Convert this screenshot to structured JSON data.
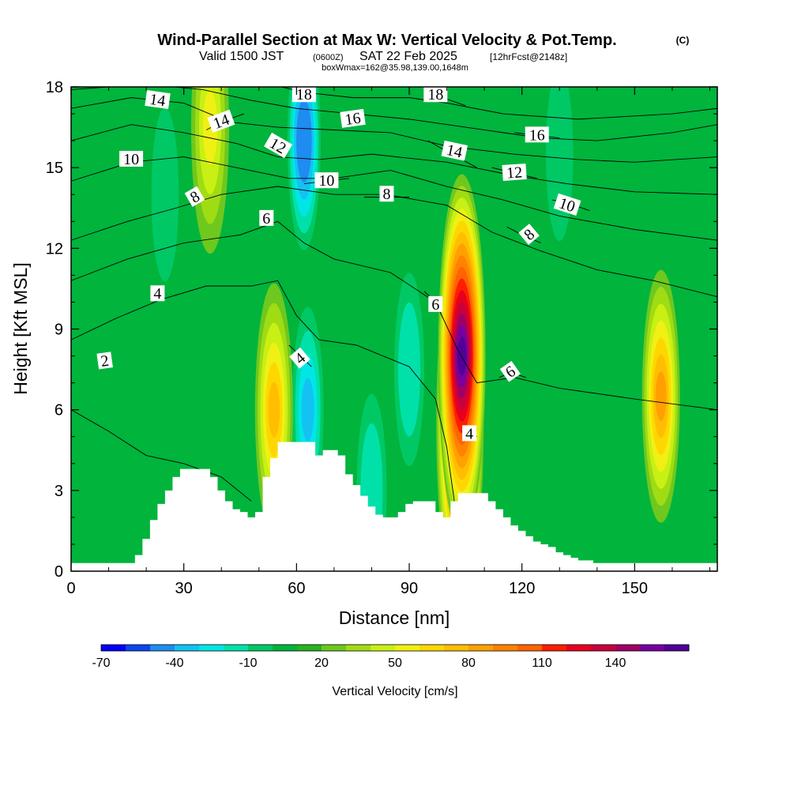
{
  "chart_data": {
    "type": "heatmap",
    "title": "Wind-Parallel Section at Max W: Vertical Velocity & Pot.Temp.",
    "title_mark": "(C)",
    "subtitle_valid": "Valid 1500 JST",
    "subtitle_utc": "(0600Z)",
    "subtitle_date": "SAT 22 Feb 2025",
    "subtitle_fcst": "[12hrFcst@2148z]",
    "subtitle_box": "boxWmax=162@35.98,139.00,1648m",
    "xlabel": "Distance [nm]",
    "ylabel": "Height [Kft MSL]",
    "xlim": [
      0,
      172
    ],
    "ylim": [
      0,
      18
    ],
    "x_ticks": [
      "0",
      "30",
      "60",
      "90",
      "120",
      "150"
    ],
    "y_ticks": [
      "0",
      "3",
      "6",
      "9",
      "12",
      "15",
      "18"
    ],
    "colorbar_label": "Vertical Velocity [cm/s]",
    "colorbar_ticks": [
      "-70",
      "-40",
      "-10",
      "20",
      "50",
      "80",
      "110",
      "140"
    ],
    "colorbar_levels": [
      -70,
      -60,
      -50,
      -40,
      -30,
      -20,
      -10,
      0,
      10,
      20,
      30,
      40,
      50,
      60,
      70,
      80,
      90,
      100,
      110,
      120,
      130,
      140,
      150
    ],
    "colorbar_colors": [
      "#0000ff",
      "#0a46ee",
      "#1e8cf0",
      "#13c2f2",
      "#00e6e6",
      "#00e1aa",
      "#00c864",
      "#00b43c",
      "#28b41e",
      "#6ec81e",
      "#a0dc14",
      "#c8f014",
      "#f0f014",
      "#ffd700",
      "#ffbe00",
      "#ffa000",
      "#ff8200",
      "#ff6400",
      "#ff1e00",
      "#e6001e",
      "#c8003c",
      "#a00064",
      "#7800a0",
      "#500096"
    ],
    "velocity_extremes": [
      {
        "x": 104,
        "z": 8.0,
        "value": 150
      },
      {
        "x": 103.5,
        "z": 5.5,
        "value": 130
      },
      {
        "x": 157,
        "z": 6.5,
        "value": 75
      },
      {
        "x": 54,
        "z": 6.0,
        "value": 60
      },
      {
        "x": 37,
        "z": 16.5,
        "value": 45
      },
      {
        "x": 62,
        "z": 16.0,
        "value": -60
      },
      {
        "x": 63,
        "z": 6.0,
        "value": -45
      },
      {
        "x": 90,
        "z": 7.5,
        "value": -30
      },
      {
        "x": 130,
        "z": 15.5,
        "value": -20
      },
      {
        "x": 25,
        "z": 14.0,
        "value": -20
      },
      {
        "x": 80,
        "z": 3.0,
        "value": -30
      }
    ],
    "terrain": {
      "x": [
        0,
        16,
        17,
        19,
        21,
        23,
        25,
        27,
        29,
        31,
        33,
        35,
        37,
        39,
        41,
        43,
        45,
        47,
        49,
        51,
        53,
        55,
        57,
        59,
        61,
        63,
        65,
        67,
        69,
        71,
        73,
        75,
        77,
        79,
        81,
        83,
        85,
        87,
        89,
        91,
        93,
        95,
        97,
        99,
        101,
        103,
        105,
        107,
        109,
        111,
        113,
        115,
        117,
        119,
        121,
        123,
        125,
        127,
        129,
        131,
        133,
        135,
        137,
        139,
        172
      ],
      "z": [
        0.3,
        0.3,
        0.6,
        1.2,
        1.9,
        2.5,
        3.0,
        3.5,
        3.8,
        3.8,
        3.8,
        3.8,
        3.5,
        3.0,
        2.6,
        2.3,
        2.2,
        2.0,
        2.2,
        3.5,
        4.2,
        4.8,
        4.8,
        4.8,
        4.8,
        4.8,
        4.3,
        4.5,
        4.5,
        4.3,
        3.6,
        3.2,
        2.8,
        2.4,
        2.1,
        2.0,
        2.0,
        2.2,
        2.5,
        2.6,
        2.6,
        2.6,
        2.2,
        2.0,
        2.6,
        2.9,
        2.9,
        2.9,
        2.9,
        2.6,
        2.3,
        2.0,
        1.7,
        1.5,
        1.3,
        1.1,
        1.0,
        0.9,
        0.7,
        0.6,
        0.5,
        0.4,
        0.4,
        0.3,
        0.3
      ]
    },
    "theta_contours": [
      {
        "label": "2",
        "points": [
          [
            0,
            6.0
          ],
          [
            10,
            5.2
          ],
          [
            20,
            4.3
          ],
          [
            30,
            4.0
          ],
          [
            40,
            3.5
          ],
          [
            48,
            2.6
          ]
        ],
        "label_at": [
          9,
          7.8
        ],
        "label_rot": -8
      },
      {
        "label": "4",
        "points": [
          [
            0,
            8.6
          ],
          [
            12,
            9.4
          ],
          [
            24,
            10.1
          ],
          [
            36,
            10.6
          ],
          [
            48,
            10.6
          ],
          [
            55,
            10.8
          ],
          [
            60,
            9.5
          ],
          [
            66,
            8.6
          ],
          [
            76,
            8.4
          ],
          [
            90,
            7.6
          ],
          [
            97,
            6.4
          ],
          [
            100,
            4.6
          ],
          [
            102,
            2.6
          ]
        ],
        "label_at": [
          23,
          10.3
        ],
        "label_rot": 0
      },
      {
        "label": "6",
        "points": [
          [
            0,
            10.8
          ],
          [
            15,
            11.6
          ],
          [
            30,
            12.2
          ],
          [
            45,
            12.5
          ],
          [
            55,
            13.0
          ],
          [
            62,
            12.2
          ],
          [
            70,
            11.6
          ],
          [
            85,
            11.1
          ],
          [
            97,
            10.0
          ],
          [
            103,
            8.2
          ],
          [
            108,
            7.0
          ],
          [
            118,
            7.2
          ],
          [
            130,
            6.8
          ],
          [
            150,
            6.4
          ],
          [
            172,
            6.0
          ]
        ],
        "label_at": [
          52,
          13.1
        ],
        "label_rot": 0
      },
      {
        "label": "8",
        "points": [
          [
            0,
            12.3
          ],
          [
            15,
            13.0
          ],
          [
            28,
            13.5
          ],
          [
            40,
            14.0
          ],
          [
            55,
            14.3
          ],
          [
            70,
            14.0
          ],
          [
            84,
            14.0
          ],
          [
            100,
            13.6
          ],
          [
            112,
            12.6
          ],
          [
            125,
            11.9
          ],
          [
            140,
            11.2
          ],
          [
            155,
            10.8
          ],
          [
            172,
            10.2
          ]
        ],
        "label_at": [
          33,
          13.9
        ],
        "label_rot": -30
      },
      {
        "label": "10",
        "points": [
          [
            0,
            14.5
          ],
          [
            16,
            15.2
          ],
          [
            30,
            15.4
          ],
          [
            44,
            15.0
          ],
          [
            58,
            14.6
          ],
          [
            70,
            14.6
          ],
          [
            85,
            14.9
          ],
          [
            100,
            14.3
          ],
          [
            115,
            13.8
          ],
          [
            130,
            13.2
          ],
          [
            150,
            12.7
          ],
          [
            172,
            12.3
          ]
        ],
        "label_at": [
          16,
          15.3
        ],
        "label_rot": 0
      },
      {
        "label": "12",
        "points": [
          [
            0,
            16.0
          ],
          [
            16,
            16.6
          ],
          [
            30,
            16.3
          ],
          [
            44,
            15.9
          ],
          [
            55,
            15.4
          ],
          [
            66,
            15.3
          ],
          [
            80,
            15.5
          ],
          [
            100,
            15.2
          ],
          [
            118,
            14.7
          ],
          [
            132,
            14.4
          ],
          [
            150,
            14.1
          ],
          [
            172,
            14.0
          ]
        ],
        "label_at": [
          55,
          15.8
        ],
        "label_rot": 30
      },
      {
        "label": "14",
        "points": [
          [
            0,
            17.2
          ],
          [
            16,
            17.6
          ],
          [
            30,
            17.4
          ],
          [
            42,
            16.7
          ],
          [
            55,
            16.5
          ],
          [
            70,
            16.4
          ],
          [
            85,
            16.3
          ],
          [
            100,
            15.8
          ],
          [
            118,
            15.5
          ],
          [
            135,
            15.3
          ],
          [
            150,
            15.2
          ],
          [
            172,
            15.4
          ]
        ],
        "label_at": [
          23,
          17.5
        ],
        "label_rot": 8
      },
      {
        "label": "16",
        "points": [
          [
            0,
            17.9
          ],
          [
            20,
            18.1
          ],
          [
            35,
            17.9
          ],
          [
            48,
            17.5
          ],
          [
            60,
            17.2
          ],
          [
            75,
            17.0
          ],
          [
            90,
            16.8
          ],
          [
            110,
            16.4
          ],
          [
            125,
            16.1
          ],
          [
            140,
            16.0
          ],
          [
            160,
            16.3
          ],
          [
            172,
            16.6
          ]
        ],
        "label_at": [
          75,
          16.8
        ],
        "label_rot": -8
      },
      {
        "label": "18",
        "points": [
          [
            0,
            18.6
          ],
          [
            30,
            18.5
          ],
          [
            50,
            18.2
          ],
          [
            62,
            17.8
          ],
          [
            75,
            17.6
          ],
          [
            90,
            17.6
          ],
          [
            100,
            17.4
          ],
          [
            115,
            17.0
          ],
          [
            135,
            16.8
          ],
          [
            160,
            17.0
          ],
          [
            172,
            17.2
          ]
        ],
        "label_at": [
          62,
          17.7
        ],
        "label_rot": 0
      },
      {
        "label": "14",
        "points": [
          [
            95,
            16.0
          ],
          [
            100,
            15.6
          ],
          [
            108,
            15.0
          ]
        ],
        "label_at": [
          102,
          15.6
        ],
        "label_rot": 12
      },
      {
        "label": "18",
        "points": [
          [
            94,
            17.8
          ],
          [
            99,
            17.6
          ],
          [
            105,
            17.3
          ]
        ],
        "label_at": [
          97,
          17.7
        ],
        "label_rot": 0
      },
      {
        "label": "14",
        "points": [
          [
            36,
            16.4
          ],
          [
            40,
            16.7
          ],
          [
            46,
            17.0
          ]
        ],
        "label_at": [
          40,
          16.7
        ],
        "label_rot": -20
      },
      {
        "label": "10",
        "points": [
          [
            62,
            14.4
          ],
          [
            68,
            14.5
          ],
          [
            74,
            14.6
          ]
        ],
        "label_at": [
          68,
          14.5
        ],
        "label_rot": 0
      },
      {
        "label": "8",
        "points": [
          [
            78,
            13.9
          ],
          [
            84,
            13.9
          ],
          [
            90,
            13.9
          ]
        ],
        "label_at": [
          84,
          14.0
        ],
        "label_rot": 0
      },
      {
        "label": "16",
        "points": [
          [
            118,
            16.3
          ],
          [
            124,
            16.2
          ],
          [
            130,
            16.1
          ]
        ],
        "label_at": [
          124,
          16.2
        ],
        "label_rot": 0
      },
      {
        "label": "12",
        "points": [
          [
            112,
            15.0
          ],
          [
            118,
            14.8
          ],
          [
            124,
            14.6
          ]
        ],
        "label_at": [
          118,
          14.8
        ],
        "label_rot": -4
      },
      {
        "label": "10",
        "points": [
          [
            128,
            13.8
          ],
          [
            132,
            13.7
          ],
          [
            138,
            13.4
          ]
        ],
        "label_at": [
          132,
          13.6
        ],
        "label_rot": 18
      },
      {
        "label": "8",
        "points": [
          [
            116,
            12.8
          ],
          [
            120,
            12.5
          ],
          [
            125,
            12.2
          ]
        ],
        "label_at": [
          122,
          12.5
        ],
        "label_rot": -40
      },
      {
        "label": "6",
        "points": [
          [
            94,
            10.4
          ],
          [
            97,
            10.0
          ],
          [
            99,
            9.4
          ]
        ],
        "label_at": [
          97,
          9.9
        ],
        "label_rot": 0
      },
      {
        "label": "4",
        "points": [
          [
            58,
            8.4
          ],
          [
            61,
            8.0
          ],
          [
            64,
            7.6
          ]
        ],
        "label_at": [
          61,
          7.9
        ],
        "label_rot": -40
      },
      {
        "label": "6",
        "points": [
          [
            114,
            7.2
          ],
          [
            117,
            7.4
          ],
          [
            121,
            7.2
          ]
        ],
        "label_at": [
          117,
          7.4
        ],
        "label_rot": -35
      },
      {
        "label": "4",
        "points": [
          [
            104,
            5.2
          ],
          [
            106,
            5.1
          ],
          [
            108,
            5.0
          ]
        ],
        "label_at": [
          106,
          5.1
        ],
        "label_rot": 0
      }
    ]
  }
}
